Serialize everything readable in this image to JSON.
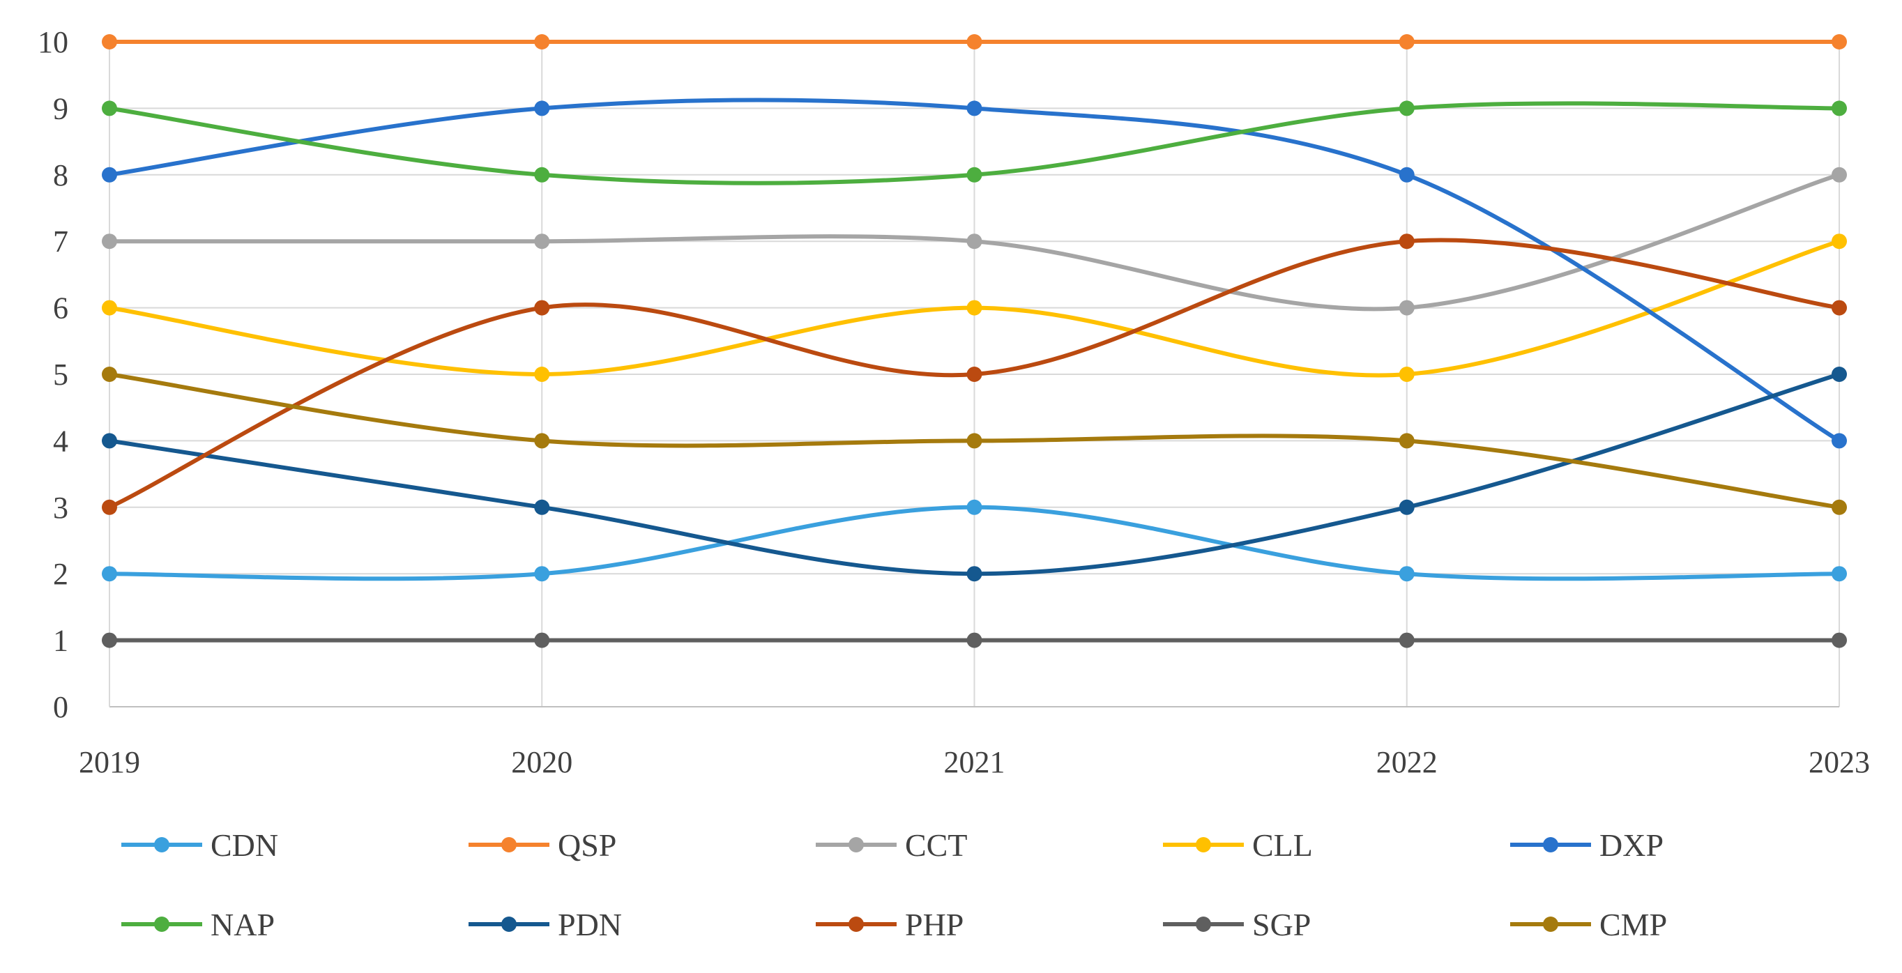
{
  "chart_data": {
    "type": "line",
    "smooth": true,
    "title": "",
    "xlabel": "",
    "ylabel": "",
    "categories": [
      "2019",
      "2020",
      "2021",
      "2022",
      "2023"
    ],
    "ylim": [
      0,
      10
    ],
    "yticks": [
      "0",
      "1",
      "2",
      "3",
      "4",
      "5",
      "6",
      "7",
      "8",
      "9",
      "10"
    ],
    "grid": true,
    "legend_position": "bottom",
    "series": [
      {
        "name": "CDN",
        "color": "#3AA0DE",
        "values": [
          2,
          2,
          3,
          2,
          2
        ]
      },
      {
        "name": "QSP",
        "color": "#F5822D",
        "values": [
          10,
          10,
          10,
          10,
          10
        ]
      },
      {
        "name": "CCT",
        "color": "#A5A5A5",
        "values": [
          7,
          7,
          7,
          6,
          8
        ]
      },
      {
        "name": "CLL",
        "color": "#FFC000",
        "values": [
          6,
          5,
          6,
          5,
          7
        ]
      },
      {
        "name": "DXP",
        "color": "#2872CC",
        "values": [
          8,
          9,
          9,
          8,
          4
        ]
      },
      {
        "name": "NAP",
        "color": "#4DAE3F",
        "values": [
          9,
          8,
          8,
          9,
          9
        ]
      },
      {
        "name": "PDN",
        "color": "#15588F",
        "values": [
          4,
          3,
          2,
          3,
          5
        ]
      },
      {
        "name": "PHP",
        "color": "#BB4A10",
        "values": [
          3,
          6,
          5,
          7,
          6
        ]
      },
      {
        "name": "SGP",
        "color": "#5F5F5F",
        "values": [
          1,
          1,
          1,
          1,
          1
        ]
      },
      {
        "name": "CMP",
        "color": "#A57A0D",
        "values": [
          5,
          4,
          4,
          4,
          3
        ]
      }
    ]
  }
}
